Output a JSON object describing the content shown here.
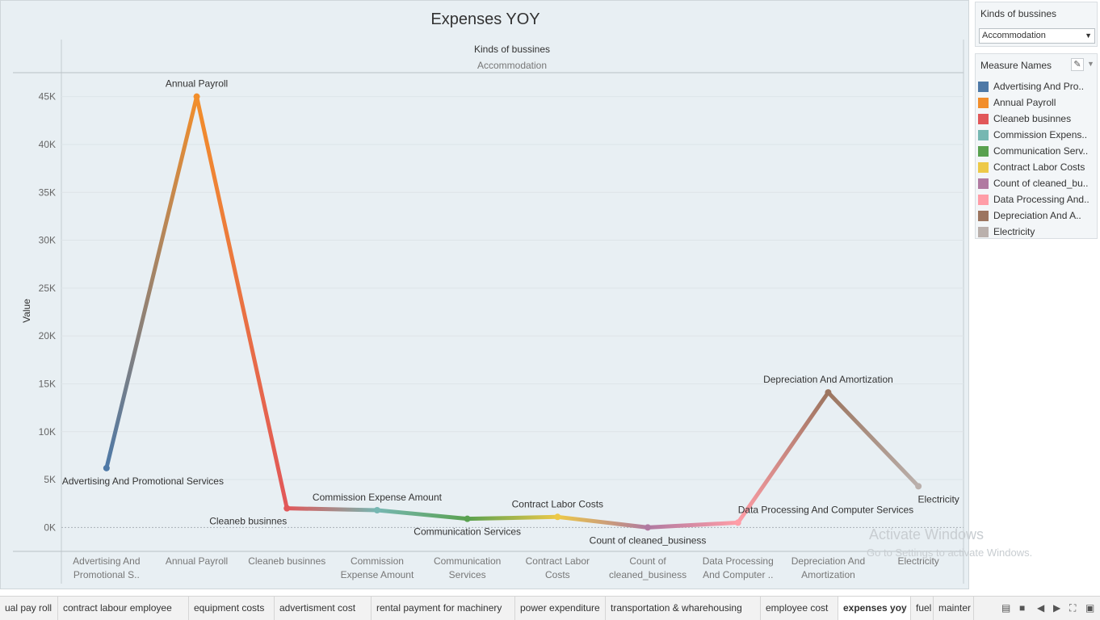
{
  "chart_data": {
    "type": "line",
    "title": "Expenses YOY",
    "column_header": "Kinds of bussines",
    "column_value": "Accommodation",
    "ylabel": "Value",
    "ylim": [
      -2500,
      47500
    ],
    "yticks": [
      "0K",
      "5K",
      "10K",
      "15K",
      "20K",
      "25K",
      "30K",
      "35K",
      "40K",
      "45K"
    ],
    "categories": [
      [
        "Advertising And",
        "Promotional S.."
      ],
      [
        "Annual Payroll"
      ],
      [
        "Cleaneb businnes"
      ],
      [
        "Commission",
        "Expense Amount"
      ],
      [
        "Communication",
        "Services"
      ],
      [
        "Contract Labor",
        "Costs"
      ],
      [
        "Count of",
        "cleaned_business"
      ],
      [
        "Data Processing",
        "And Computer .."
      ],
      [
        "Depreciation And",
        "Amortization"
      ],
      [
        "Electricity"
      ]
    ],
    "points": [
      {
        "label": "Advertising And Promotional Services",
        "value": 6200,
        "color": "#4e79a7"
      },
      {
        "label": "Annual Payroll",
        "value": 45000,
        "color": "#f28e2b"
      },
      {
        "label": "Cleaneb businnes",
        "value": 2000,
        "color": "#e15759"
      },
      {
        "label": "Commission Expense Amount",
        "value": 1800,
        "color": "#76b7b2"
      },
      {
        "label": "Communication Services",
        "value": 900,
        "color": "#59a14f"
      },
      {
        "label": "Contract Labor Costs",
        "value": 1100,
        "color": "#edc948"
      },
      {
        "label": "Count of cleaned_business",
        "value": 0,
        "color": "#b07aa1"
      },
      {
        "label": "Data Processing And Computer Services",
        "value": 500,
        "color": "#ff9da7"
      },
      {
        "label": "Depreciation And Amortization",
        "value": 14100,
        "color": "#9c755f"
      },
      {
        "label": "Electricity",
        "value": 4300,
        "color": "#bab0ac"
      }
    ]
  },
  "filter": {
    "title": "Kinds of bussines",
    "selected": "Accommodation"
  },
  "legend": {
    "title": "Measure Names",
    "items": [
      {
        "label": "Advertising And Pro..",
        "color": "#4e79a7"
      },
      {
        "label": "Annual Payroll",
        "color": "#f28e2b"
      },
      {
        "label": "Cleaneb businnes",
        "color": "#e15759"
      },
      {
        "label": "Commission Expens..",
        "color": "#76b7b2"
      },
      {
        "label": "Communication Serv..",
        "color": "#59a14f"
      },
      {
        "label": "Contract Labor Costs",
        "color": "#edc948"
      },
      {
        "label": "Count of cleaned_bu..",
        "color": "#b07aa1"
      },
      {
        "label": "Data Processing And..",
        "color": "#ff9da7"
      },
      {
        "label": "Depreciation And A..",
        "color": "#9c755f"
      },
      {
        "label": "Electricity",
        "color": "#bab0ac"
      }
    ]
  },
  "watermark": {
    "line1": "Activate Windows",
    "line2": "Go to Settings to activate Windows."
  },
  "tabs": [
    {
      "label": "ual pay roll"
    },
    {
      "label": "contract labour employee"
    },
    {
      "label": "equipment costs"
    },
    {
      "label": "advertisment cost"
    },
    {
      "label": "rental payment for machinery"
    },
    {
      "label": "power expenditure"
    },
    {
      "label": "transportation & wharehousing"
    },
    {
      "label": "employee cost"
    },
    {
      "label": "expenses yoy",
      "active": true
    },
    {
      "label": "fuel"
    },
    {
      "label": "mainter"
    }
  ]
}
